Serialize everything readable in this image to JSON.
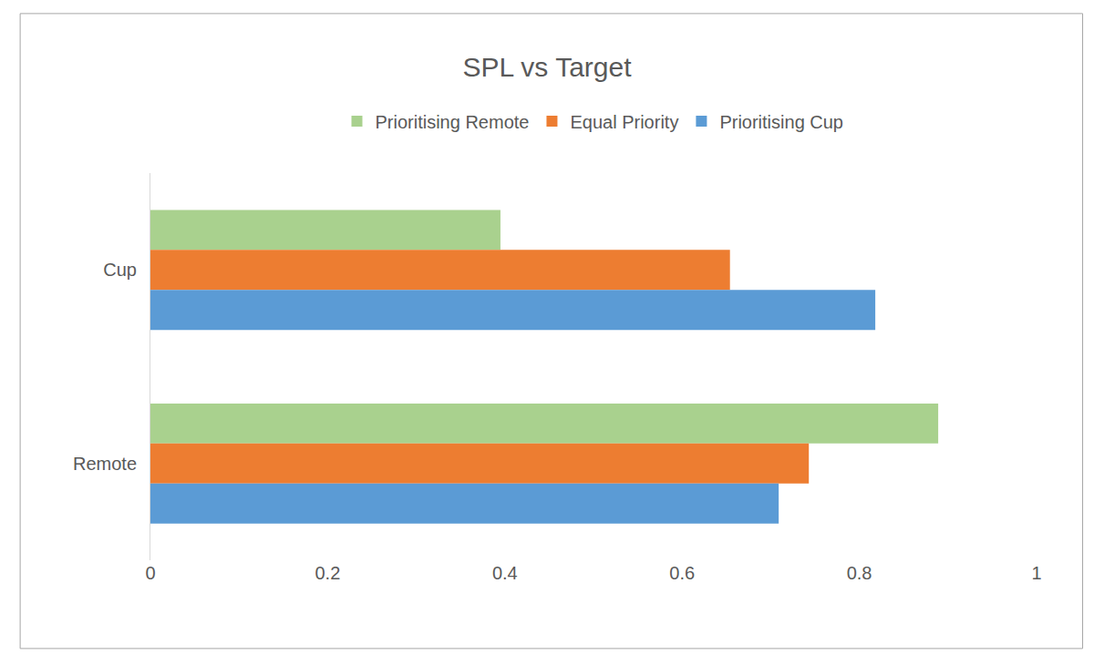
{
  "chart_data": {
    "type": "bar",
    "title": "SPL vs Target",
    "orientation": "horizontal",
    "categories": [
      "Cup",
      "Remote"
    ],
    "series": [
      {
        "name": "Prioritising Remote",
        "color": "#a9d18e",
        "values": [
          0.395,
          0.889
        ]
      },
      {
        "name": "Equal Priority",
        "color": "#ed7d31",
        "values": [
          0.654,
          0.743
        ]
      },
      {
        "name": "Prioritising Cup",
        "color": "#5b9bd5",
        "values": [
          0.818,
          0.709
        ]
      }
    ],
    "xlim": [
      0,
      1
    ],
    "xticks": [
      0,
      0.2,
      0.4,
      0.6,
      0.8,
      1
    ],
    "grid": false,
    "legend": "top"
  }
}
